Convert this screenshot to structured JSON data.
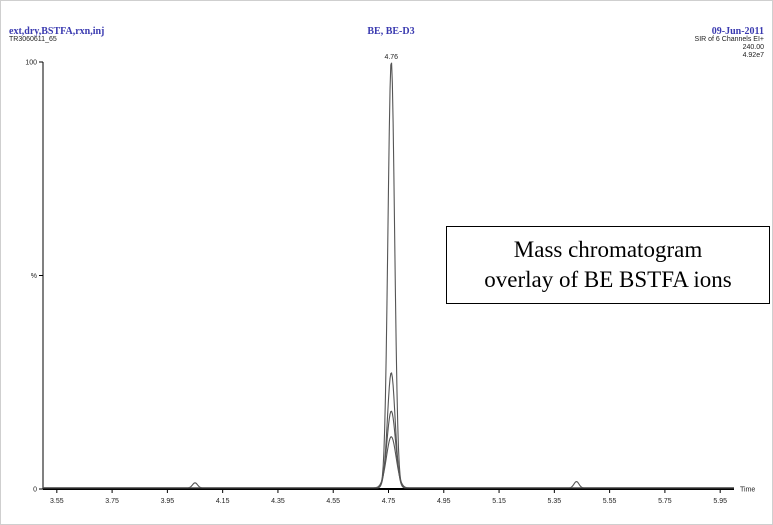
{
  "header": {
    "sample_name": "ext,dry,BSTFA,rxn,inj",
    "run_id": "TR3060611_65",
    "compound": "BE, BE-D3",
    "date": "09-Jun-2011",
    "channel_info": "SIR of 6 Channels EI+",
    "mass": "240.00",
    "intensity": "4.92e7"
  },
  "annotation": {
    "line1": "Mass chromatogram",
    "line2": "overlay of BE BSTFA ions"
  },
  "chart_data": {
    "type": "line",
    "title": "",
    "xlabel": "Time",
    "ylabel": "%",
    "xlim": [
      3.5,
      6.0
    ],
    "ylim": [
      0,
      100
    ],
    "x_ticks": [
      "3.55",
      "3.75",
      "3.95",
      "4.15",
      "4.35",
      "4.55",
      "4.75",
      "4.95",
      "5.15",
      "5.35",
      "5.55",
      "5.75",
      "5.95"
    ],
    "y_tick_labels": {
      "top": "100",
      "mid": "%",
      "bottom": "0"
    },
    "peak_label": "4.76",
    "peaks": [
      {
        "x": 4.76,
        "heights": [
          100,
          27,
          18,
          12
        ]
      },
      {
        "x": 4.05,
        "heights": [
          1.2
        ]
      },
      {
        "x": 5.43,
        "heights": [
          1.5
        ]
      }
    ],
    "colors": {
      "trace": "#555555",
      "axis": "#000000"
    }
  }
}
